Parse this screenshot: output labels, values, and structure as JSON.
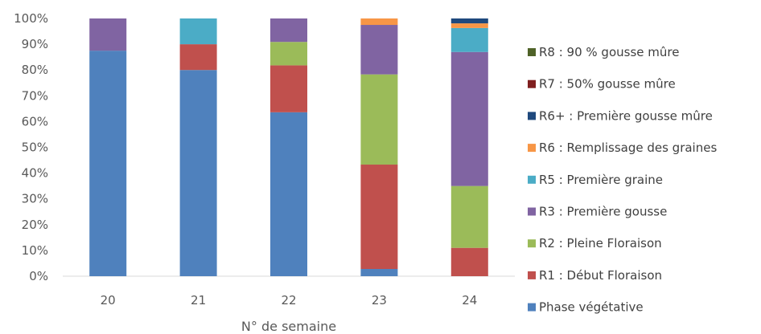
{
  "chart_data": {
    "type": "bar",
    "stacked": true,
    "percent": true,
    "xlabel": "N° de semaine",
    "ylabel": "",
    "ylim": [
      0,
      100
    ],
    "yticks": [
      "0%",
      "10%",
      "20%",
      "30%",
      "40%",
      "50%",
      "60%",
      "70%",
      "80%",
      "90%",
      "100%"
    ],
    "categories": [
      "20",
      "21",
      "22",
      "23",
      "24"
    ],
    "grid": false,
    "legend_position": "right",
    "series": [
      {
        "name": "Phase végétative",
        "color": "#4f81bd",
        "values": [
          87.5,
          80,
          63.6,
          2.8,
          0
        ]
      },
      {
        "name": "R1 : Début Floraison",
        "color": "#c0504d",
        "values": [
          0,
          10,
          18.2,
          40.5,
          11
        ]
      },
      {
        "name": "R2 : Pleine Floraison",
        "color": "#9bbb59",
        "values": [
          0,
          0,
          9.1,
          35,
          24
        ]
      },
      {
        "name": "R3 : Première gousse",
        "color": "#8064a2",
        "values": [
          12.5,
          0,
          9.1,
          19.2,
          52
        ]
      },
      {
        "name": "R5 : Première graine",
        "color": "#4bacc6",
        "values": [
          0,
          10,
          0,
          0,
          9.3
        ]
      },
      {
        "name": "R6 : Remplissage des graines",
        "color": "#f79646",
        "values": [
          0,
          0,
          0,
          2.5,
          1.8
        ]
      },
      {
        "name": "R6+ : Première gousse mûre",
        "color": "#1f497d",
        "values": [
          0,
          0,
          0,
          0,
          1.9
        ]
      },
      {
        "name": "R7 : 50% gousse mûre",
        "color": "#7f1f1f",
        "values": [
          0,
          0,
          0,
          0,
          0
        ]
      },
      {
        "name": "R8 : 90 % gousse mûre",
        "color": "#4f6228",
        "values": [
          0,
          0,
          0,
          0,
          0
        ]
      }
    ]
  }
}
